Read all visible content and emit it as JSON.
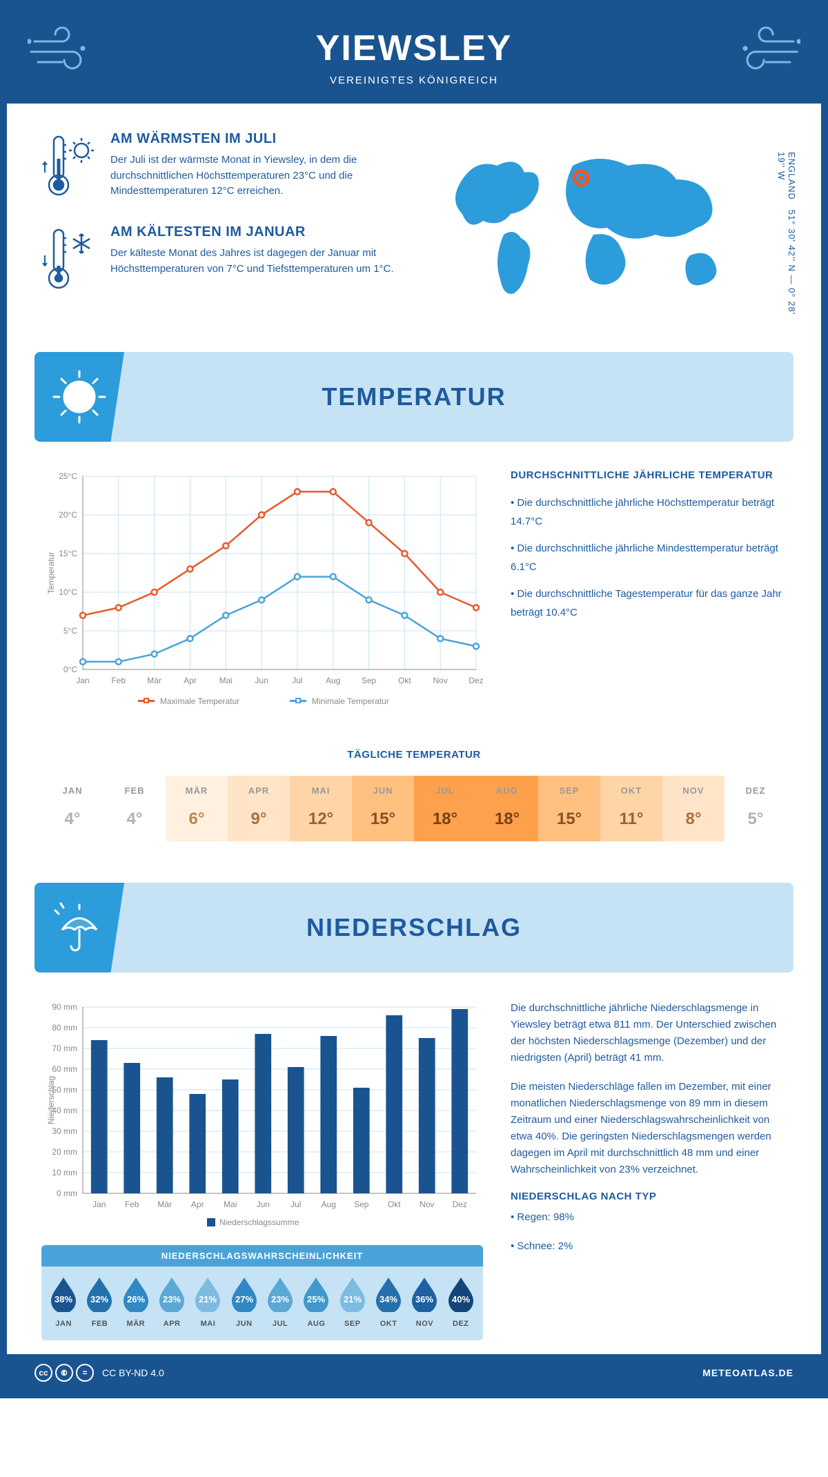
{
  "header": {
    "title": "YIEWSLEY",
    "subtitle": "VEREINIGTES KÖNIGREICH"
  },
  "coords": {
    "line1": "51° 30' 42'' N — 0° 28' 19'' W",
    "country": "ENGLAND"
  },
  "warmest": {
    "title": "AM WÄRMSTEN IM JULI",
    "text": "Der Juli ist der wärmste Monat in Yiewsley, in dem die durchschnittlichen Höchsttemperaturen 23°C und die Mindesttemperaturen 12°C erreichen."
  },
  "coldest": {
    "title": "AM KÄLTESTEN IM JANUAR",
    "text": "Der kälteste Monat des Jahres ist dagegen der Januar mit Höchsttemperaturen von 7°C und Tiefsttemperaturen um 1°C."
  },
  "sections": {
    "temperature": "TEMPERATUR",
    "precipitation": "NIEDERSCHLAG"
  },
  "temp_chart": {
    "type": "line",
    "y_label": "Temperatur",
    "ylim": [
      0,
      25
    ],
    "ytick_step": 5,
    "y_suffix": "°C",
    "months": [
      "Jan",
      "Feb",
      "Mär",
      "Apr",
      "Mai",
      "Jun",
      "Jul",
      "Aug",
      "Sep",
      "Okt",
      "Nov",
      "Dez"
    ],
    "series": {
      "max": {
        "label": "Maximale Temperatur",
        "color": "#e8592b",
        "values": [
          7,
          8,
          10,
          13,
          16,
          20,
          23,
          23,
          19,
          15,
          10,
          8
        ]
      },
      "min": {
        "label": "Minimale Temperatur",
        "color": "#4aa3d8",
        "values": [
          1,
          1,
          2,
          4,
          7,
          9,
          12,
          12,
          9,
          7,
          4,
          3
        ]
      }
    },
    "grid_color": "#c5e3f5",
    "axis_color": "#888888"
  },
  "temp_info": {
    "heading": "DURCHSCHNITTLICHE JÄHRLICHE TEMPERATUR",
    "bullets": [
      "• Die durchschnittliche jährliche Höchsttemperatur beträgt 14.7°C",
      "• Die durchschnittliche jährliche Mindesttemperatur beträgt 6.1°C",
      "• Die durchschnittliche Tagestemperatur für das ganze Jahr beträgt 10.4°C"
    ]
  },
  "daily_temp": {
    "heading": "TÄGLICHE TEMPERATUR",
    "months": [
      "JAN",
      "FEB",
      "MÄR",
      "APR",
      "MAI",
      "JUN",
      "JUL",
      "AUG",
      "SEP",
      "OKT",
      "NOV",
      "DEZ"
    ],
    "values": [
      "4°",
      "4°",
      "6°",
      "9°",
      "12°",
      "15°",
      "18°",
      "18°",
      "15°",
      "11°",
      "8°",
      "5°"
    ],
    "bg_colors": [
      "#ffffff",
      "#ffffff",
      "#fff0e0",
      "#ffe4c8",
      "#ffd5a8",
      "#ffc080",
      "#ffa04d",
      "#ffa04d",
      "#ffc080",
      "#ffd5a8",
      "#ffe4c8",
      "#ffffff"
    ],
    "text_colors": [
      "#b0b0b0",
      "#b0b0b0",
      "#b88850",
      "#a87040",
      "#996030",
      "#885020",
      "#774010",
      "#774010",
      "#885020",
      "#996030",
      "#a87040",
      "#b0b0b0"
    ]
  },
  "precip_chart": {
    "type": "bar",
    "y_label": "Niederschlag",
    "ylim": [
      0,
      90
    ],
    "ytick_step": 10,
    "y_suffix": " mm",
    "months": [
      "Jan",
      "Feb",
      "Mär",
      "Apr",
      "Mai",
      "Jun",
      "Jul",
      "Aug",
      "Sep",
      "Okt",
      "Nov",
      "Dez"
    ],
    "values": [
      74,
      63,
      56,
      48,
      55,
      77,
      61,
      76,
      51,
      86,
      75,
      89
    ],
    "bar_color": "#1a5490",
    "legend": "Niederschlagssumme",
    "bar_width": 0.5,
    "grid_color": "#c5e3f5",
    "axis_color": "#888888"
  },
  "precip_info": {
    "para1": "Die durchschnittliche jährliche Niederschlagsmenge in Yiewsley beträgt etwa 811 mm. Der Unterschied zwischen der höchsten Niederschlagsmenge (Dezember) und der niedrigsten (April) beträgt 41 mm.",
    "para2": "Die meisten Niederschläge fallen im Dezember, mit einer monatlichen Niederschlagsmenge von 89 mm in diesem Zeitraum und einer Niederschlagswahrscheinlichkeit von etwa 40%. Die geringsten Niederschlagsmengen werden dagegen im April mit durchschnittlich 48 mm und einer Wahrscheinlichkeit von 23% verzeichnet.",
    "type_heading": "NIEDERSCHLAG NACH TYP",
    "type_bullets": [
      "• Regen: 98%",
      "• Schnee: 2%"
    ]
  },
  "precip_prob": {
    "heading": "NIEDERSCHLAGSWAHRSCHEINLICHKEIT",
    "months": [
      "JAN",
      "FEB",
      "MÄR",
      "APR",
      "MAI",
      "JUN",
      "JUL",
      "AUG",
      "SEP",
      "OKT",
      "NOV",
      "DEZ"
    ],
    "values": [
      "38%",
      "32%",
      "26%",
      "23%",
      "21%",
      "27%",
      "23%",
      "25%",
      "21%",
      "34%",
      "36%",
      "40%"
    ],
    "colors": [
      "#1a5490",
      "#2470ab",
      "#3088c4",
      "#5ba8d5",
      "#7dbce0",
      "#3088c4",
      "#5ba8d5",
      "#4098cc",
      "#7dbce0",
      "#2470ab",
      "#1e60a0",
      "#144578"
    ]
  },
  "footer": {
    "license": "CC BY-ND 4.0",
    "site": "METEOATLAS.DE"
  },
  "colors": {
    "primary": "#1a5490",
    "accent": "#2d9cdb",
    "light_blue": "#c5e3f5",
    "text_blue": "#1e5a9e"
  }
}
